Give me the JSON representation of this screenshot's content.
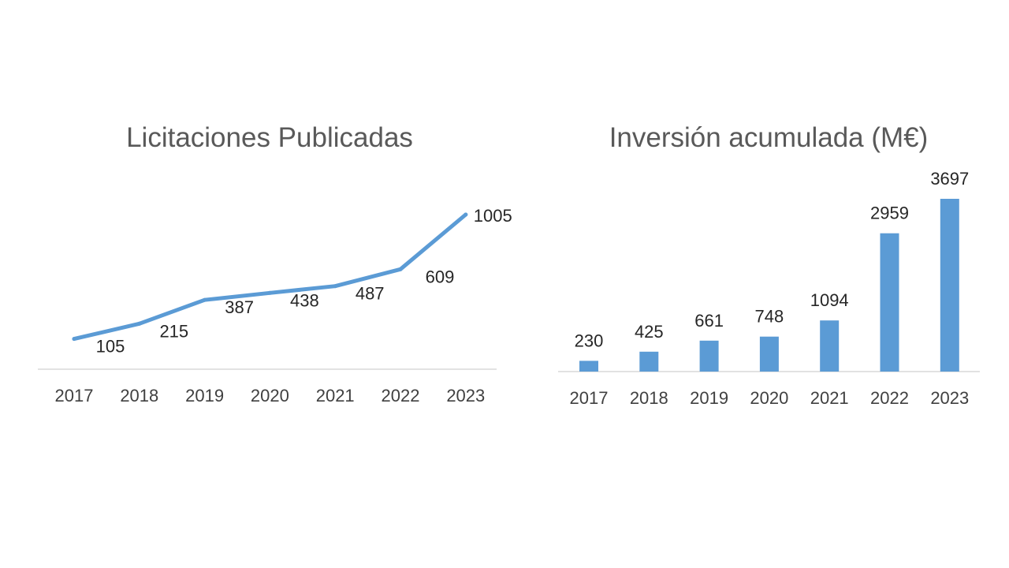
{
  "chart_data": [
    {
      "type": "line",
      "title": "Licitaciones Publicadas",
      "categories": [
        "2017",
        "2018",
        "2019",
        "2020",
        "2021",
        "2022",
        "2023"
      ],
      "series": [
        {
          "values": [
            105,
            215,
            387,
            438,
            487,
            609,
            1005
          ]
        }
      ],
      "data_labels": true,
      "grid": false,
      "legend": "none",
      "color": "#5b9bd5"
    },
    {
      "type": "bar",
      "title": "Inversión acumulada (M€)",
      "categories": [
        "2017",
        "2018",
        "2019",
        "2020",
        "2021",
        "2022",
        "2023"
      ],
      "series": [
        {
          "values": [
            230,
            425,
            661,
            748,
            1094,
            2959,
            3697
          ]
        }
      ],
      "data_labels": true,
      "grid": false,
      "legend": "none",
      "color": "#5b9bd5"
    }
  ]
}
